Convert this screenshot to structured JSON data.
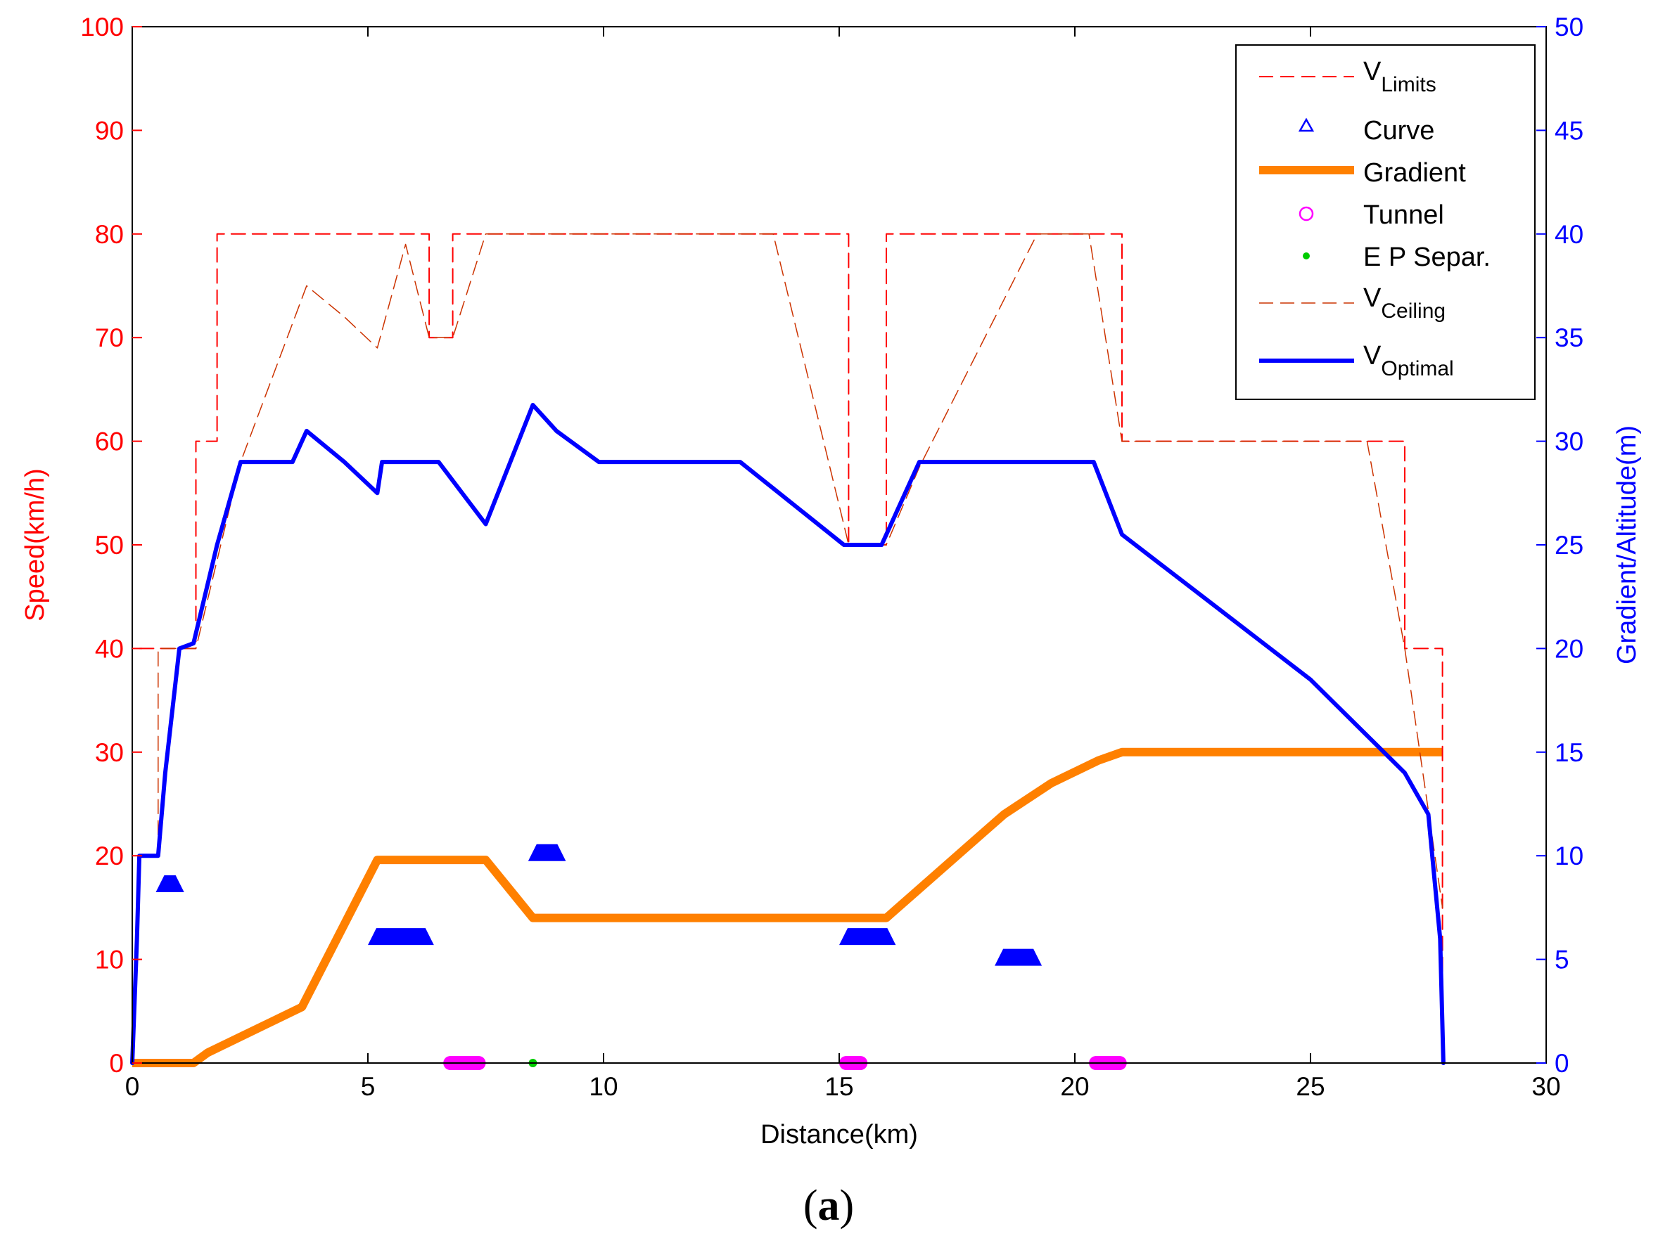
{
  "chart_data": {
    "type": "line",
    "caption": {
      "open": "(",
      "letter": "a",
      "close": ")"
    },
    "xlabel": "Distance(km)",
    "ylabel_left": "Speed(km/h)",
    "ylabel_right": "Gradient/Altitude(m)",
    "xlim": [
      0,
      30
    ],
    "ylim_left": [
      0,
      100
    ],
    "ylim_right": [
      0,
      50
    ],
    "x_ticks": [
      "0",
      "5",
      "10",
      "15",
      "20",
      "25",
      "30"
    ],
    "y_left_ticks": [
      "0",
      "10",
      "20",
      "30",
      "40",
      "50",
      "60",
      "70",
      "80",
      "90",
      "100"
    ],
    "y_right_ticks": [
      "0",
      "5",
      "10",
      "15",
      "20",
      "25",
      "30",
      "35",
      "40",
      "45",
      "50"
    ],
    "legend": {
      "position": "top-right",
      "entries": [
        {
          "main": "V",
          "sub": "Limits"
        },
        {
          "main": "Curve",
          "sub": ""
        },
        {
          "main": "Gradient",
          "sub": ""
        },
        {
          "main": "Tunnel",
          "sub": ""
        },
        {
          "main": "E P Separ.",
          "sub": ""
        },
        {
          "main": "V",
          "sub": "Ceiling"
        },
        {
          "main": "V",
          "sub": "Optimal"
        }
      ]
    },
    "colors": {
      "limits": "#ff0000",
      "ceiling": "#cc3300",
      "optimal": "#0000ff",
      "gradient": "#ff8000",
      "curve": "#0000ff",
      "tunnel": "#ff00ff",
      "ep_separ": "#00cc00",
      "left_axis": "#ff0000",
      "right_axis": "#0000ff"
    },
    "series": [
      {
        "key": "limits",
        "axis": "left",
        "x": [
          0,
          0,
          0.55,
          0.55,
          1.35,
          1.35,
          1.8,
          1.8,
          6.3,
          6.3,
          6.8,
          6.8,
          15.2,
          15.2,
          16.0,
          16.0,
          21.0,
          21.0,
          27.0,
          27.0,
          27.8,
          27.8
        ],
        "y": [
          0,
          40,
          40,
          40,
          40,
          60,
          60,
          80,
          80,
          70,
          70,
          80,
          80,
          50,
          50,
          80,
          80,
          60,
          60,
          40,
          40,
          0
        ]
      },
      {
        "key": "ceiling",
        "axis": "left",
        "x": [
          0.55,
          0.55,
          1.35,
          1.35,
          2.3,
          3.7,
          4.5,
          5.2,
          5.8,
          6.3,
          6.8,
          7.5,
          13.6,
          15.15,
          15.2,
          16.0,
          16.7,
          19.2,
          20.3,
          21.0,
          26.2,
          27.0,
          27.8
        ],
        "y": [
          20,
          40,
          40,
          40,
          58,
          75,
          72,
          69,
          79,
          70,
          70,
          80,
          80,
          51,
          50,
          50,
          57.5,
          80,
          80,
          60,
          60,
          40,
          15
        ]
      },
      {
        "key": "optimal",
        "axis": "left",
        "x": [
          0,
          0.1,
          0.15,
          0.55,
          0.7,
          1.0,
          1.3,
          1.8,
          2.3,
          3.4,
          3.7,
          4.5,
          5.2,
          5.3,
          6.5,
          7.5,
          8.5,
          9.0,
          9.9,
          12.9,
          15.1,
          15.9,
          16.7,
          20.4,
          21.0,
          23.0,
          25.0,
          27.0,
          27.5,
          27.75,
          27.82
        ],
        "y": [
          0,
          12,
          20,
          20,
          28,
          40,
          40.5,
          50,
          58,
          58,
          61,
          58,
          55,
          58,
          58,
          52,
          63.5,
          61,
          58,
          58,
          50,
          50,
          58,
          58,
          51,
          44,
          37,
          28,
          24,
          12,
          0
        ]
      },
      {
        "key": "gradient",
        "axis": "right",
        "x": [
          0,
          1.3,
          1.6,
          3.6,
          5.2,
          7.5,
          8.5,
          16.0,
          18.5,
          19.5,
          20.5,
          21.0,
          27.8
        ],
        "y": [
          0,
          0,
          0.5,
          2.7,
          9.8,
          9.8,
          7,
          7,
          12,
          13.5,
          14.6,
          15,
          15
        ]
      }
    ],
    "curves": [
      {
        "x_start": 0.5,
        "x_end": 1.1,
        "y": 17.3
      },
      {
        "x_start": 5.0,
        "x_end": 6.4,
        "y": 12.2
      },
      {
        "x_start": 8.4,
        "x_end": 9.2,
        "y": 20.3
      },
      {
        "x_start": 15.0,
        "x_end": 16.2,
        "y": 12.2
      },
      {
        "x_start": 18.3,
        "x_end": 19.3,
        "y": 10.2
      }
    ],
    "tunnels": [
      {
        "x_start": 6.6,
        "x_end": 7.5
      },
      {
        "x_start": 15.0,
        "x_end": 15.6
      },
      {
        "x_start": 20.3,
        "x_end": 21.1
      }
    ],
    "ep_separ": [
      {
        "x": 8.5
      }
    ],
    "grid": false
  }
}
